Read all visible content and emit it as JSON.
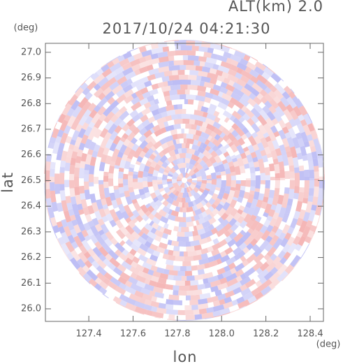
{
  "chart_data": {
    "type": "ppi",
    "title": "2017/10/24 04:21:30",
    "subtitle": "ALT(km) 2.0",
    "x_label": "lon",
    "y_label": "lat",
    "x_unit": "(deg)",
    "y_unit": "(deg)",
    "xlim": [
      127.204,
      128.46
    ],
    "ylim": [
      25.951,
      27.035
    ],
    "xticks": [
      {
        "value": 127.4,
        "label": "127.4"
      },
      {
        "value": 127.6,
        "label": "127.6"
      },
      {
        "value": 127.8,
        "label": "127.8"
      },
      {
        "value": 128.0,
        "label": "128.0"
      },
      {
        "value": 128.2,
        "label": "128.2"
      },
      {
        "value": 128.4,
        "label": "128.4"
      }
    ],
    "yticks": [
      {
        "value": 26.0,
        "label": "26.0"
      },
      {
        "value": 26.1,
        "label": "26.1"
      },
      {
        "value": 26.2,
        "label": "26.2"
      },
      {
        "value": 26.3,
        "label": "26.3"
      },
      {
        "value": 26.4,
        "label": "26.4"
      },
      {
        "value": 26.5,
        "label": "26.5"
      },
      {
        "value": 26.6,
        "label": "26.6"
      },
      {
        "value": 26.7,
        "label": "26.7"
      },
      {
        "value": 26.8,
        "label": "26.8"
      },
      {
        "value": 26.9,
        "label": "26.9"
      },
      {
        "value": 27.0,
        "label": "27.0"
      }
    ]
  }
}
